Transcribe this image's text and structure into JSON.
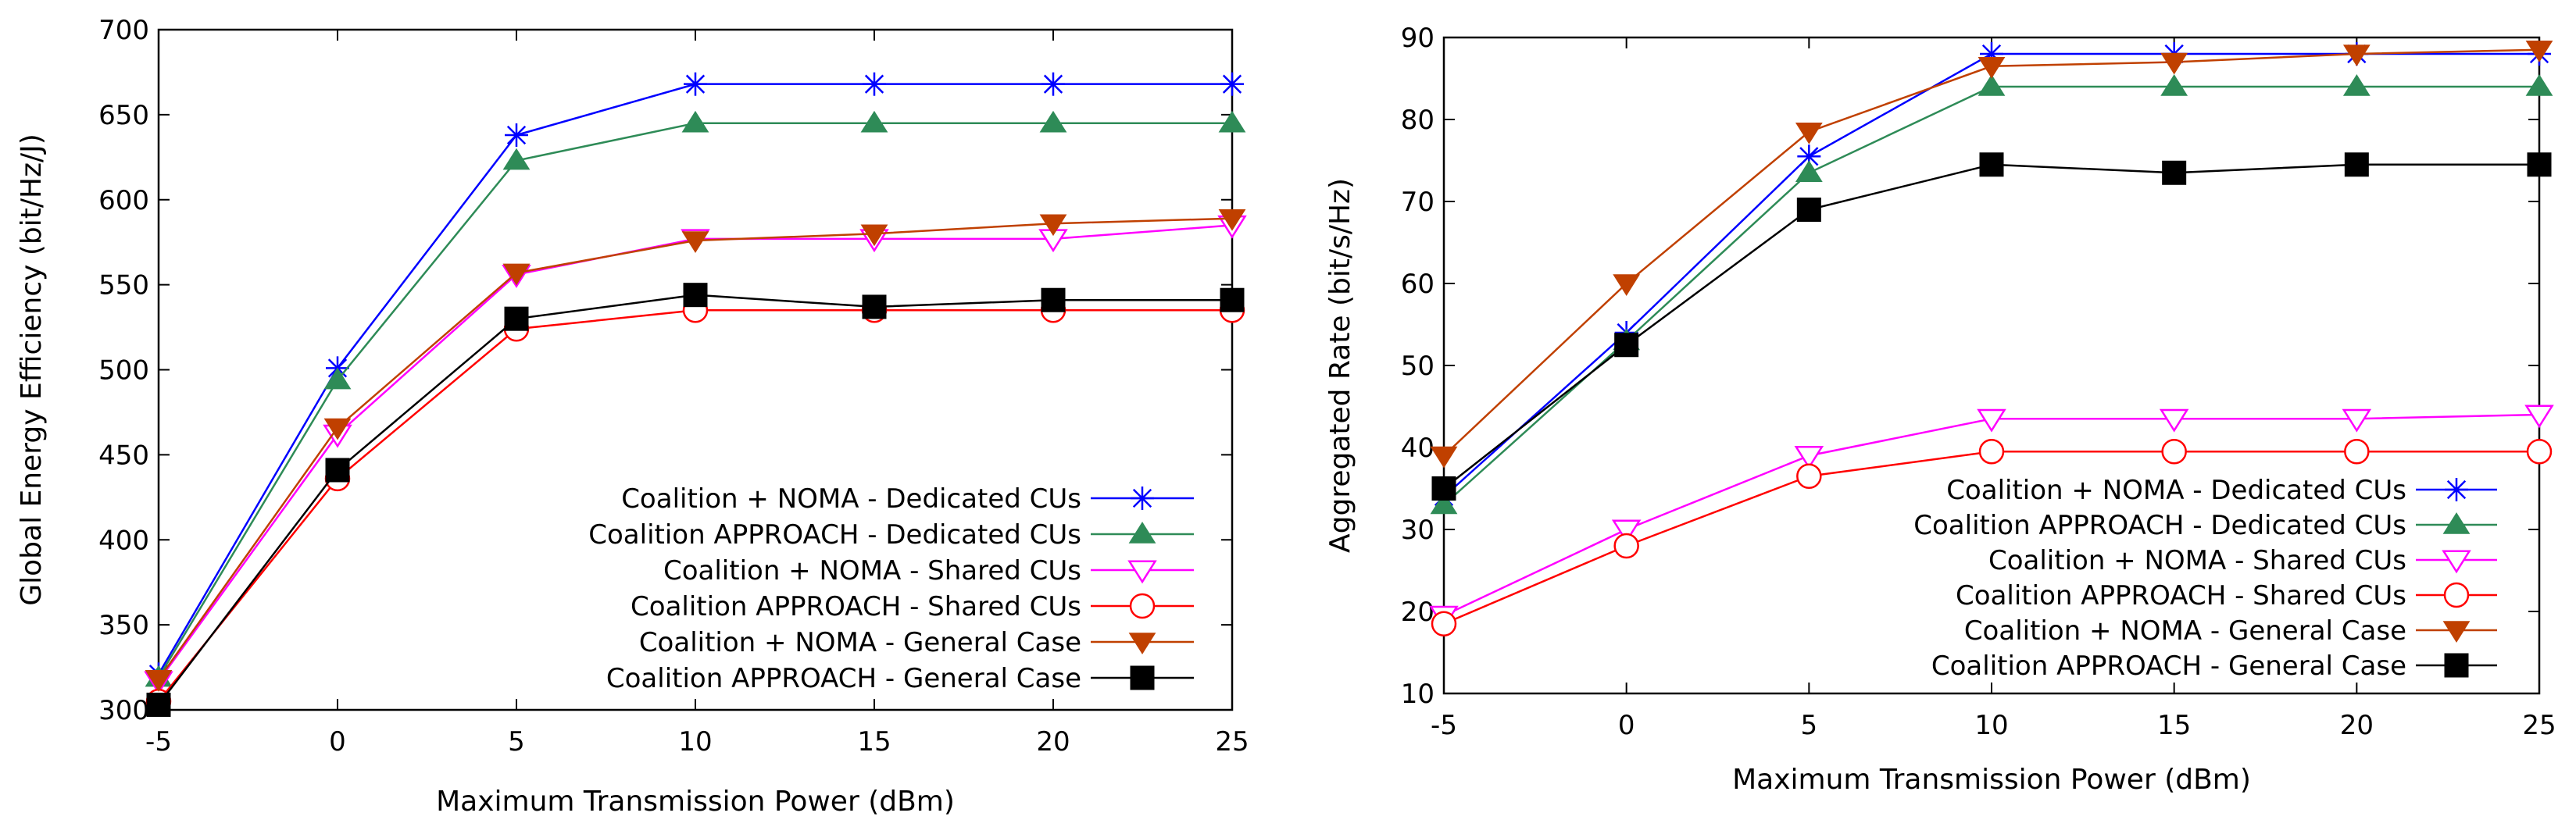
{
  "chart_data": [
    {
      "id": "energy",
      "type": "line",
      "title": "",
      "xlabel": "Maximum Transmission Power (dBm)",
      "ylabel": "Global Energy Efficiency (bit/Hz/J)",
      "xlim": [
        -5,
        25
      ],
      "ylim": [
        300,
        700
      ],
      "xticks": [
        -5,
        0,
        5,
        10,
        15,
        20,
        25
      ],
      "yticks": [
        300,
        350,
        400,
        450,
        500,
        550,
        600,
        650,
        700
      ],
      "x": [
        -5,
        0,
        5,
        10,
        15,
        20,
        25
      ],
      "legend_position": "bottom-right",
      "series": [
        {
          "name": "Coalition + NOMA - Dedicated CUs",
          "color": "#0000ff",
          "marker": "asterisk",
          "values": [
            321,
            501,
            638,
            668,
            668,
            668,
            668
          ]
        },
        {
          "name": "Coalition  APPROACH - Dedicated CUs",
          "color": "#2e8b57",
          "marker": "triangle-up",
          "values": [
            319,
            494,
            623,
            645,
            645,
            645,
            645
          ]
        },
        {
          "name": "Coalition + NOMA - Shared CUs",
          "color": "#ff00ff",
          "marker": "triangle-down-open",
          "values": [
            317,
            462,
            556,
            577,
            577,
            577,
            585
          ]
        },
        {
          "name": "Coalition APPROACH - Shared CUs",
          "color": "#ff0000",
          "marker": "circle-open",
          "values": [
            305,
            436,
            524,
            535,
            535,
            535,
            535
          ]
        },
        {
          "name": "Coalition + NOMA -  General Case",
          "color": "#c04000",
          "marker": "triangle-down",
          "values": [
            318,
            466,
            557,
            576,
            580,
            586,
            589
          ]
        },
        {
          "name": "Coalition  APPROACH - General Case",
          "color": "#000000",
          "marker": "square",
          "values": [
            303,
            441,
            530,
            544,
            537,
            541,
            541
          ]
        }
      ]
    },
    {
      "id": "rate",
      "type": "line",
      "title": "",
      "xlabel": "Maximum Transmission Power (dBm)",
      "ylabel": "Aggregated Rate (bit/s/Hz)",
      "xlim": [
        -5,
        25
      ],
      "ylim": [
        10,
        90
      ],
      "xticks": [
        -5,
        0,
        5,
        10,
        15,
        20,
        25
      ],
      "yticks": [
        10,
        20,
        30,
        40,
        50,
        60,
        70,
        80,
        90
      ],
      "x": [
        -5,
        0,
        5,
        10,
        15,
        20,
        25
      ],
      "legend_position": "bottom-right",
      "series": [
        {
          "name": "Coalition + NOMA - Dedicated CUs",
          "color": "#0000ff",
          "marker": "asterisk",
          "values": [
            34,
            54,
            75.5,
            88,
            88,
            88,
            88
          ]
        },
        {
          "name": "Coalition  APPROACH - Dedicated CUs",
          "color": "#2e8b57",
          "marker": "triangle-up",
          "values": [
            33,
            53,
            73.5,
            84,
            84,
            84,
            84
          ]
        },
        {
          "name": "Coalition + NOMA - Shared CUs",
          "color": "#ff00ff",
          "marker": "triangle-down-open",
          "values": [
            19.5,
            30,
            39,
            43.5,
            43.5,
            43.5,
            44
          ]
        },
        {
          "name": "Coalition APPROACH - Shared CUs",
          "color": "#ff0000",
          "marker": "circle-open",
          "values": [
            18.5,
            28,
            36.5,
            39.5,
            39.5,
            39.5,
            39.5
          ]
        },
        {
          "name": "Coalition + NOMA -  General Case",
          "color": "#c04000",
          "marker": "triangle-down",
          "values": [
            39,
            60,
            78.5,
            86.5,
            87,
            88,
            88.5
          ]
        },
        {
          "name": "Coalition  APPROACH - General Case",
          "color": "#000000",
          "marker": "square",
          "values": [
            35,
            52.5,
            69,
            74.5,
            73.5,
            74.5,
            74.5
          ]
        }
      ]
    }
  ]
}
